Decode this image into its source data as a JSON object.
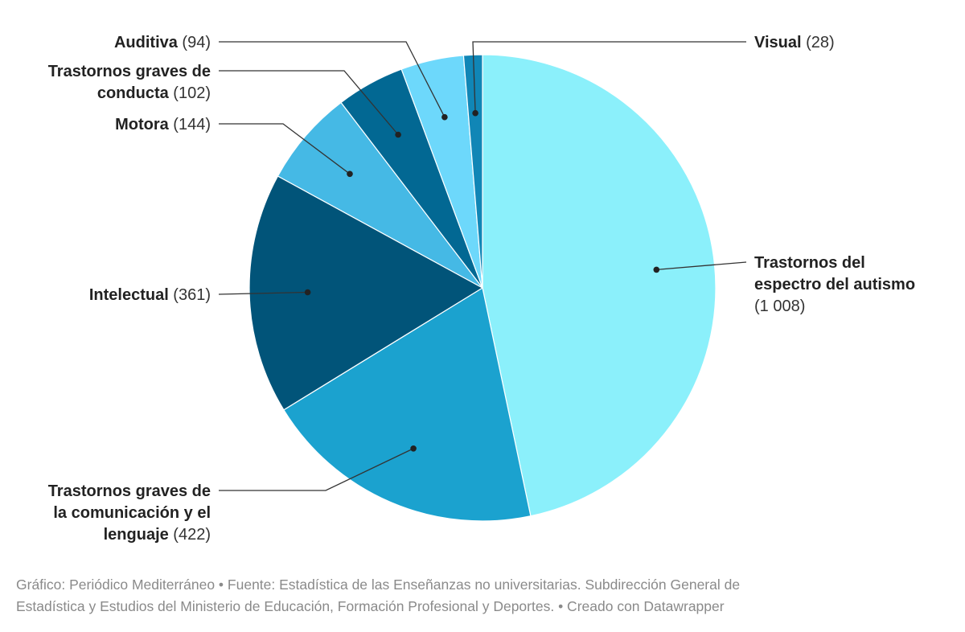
{
  "chart_data": {
    "type": "pie",
    "slices": [
      {
        "name": "Trastornos del espectro del autismo",
        "lines": [
          "Trastornos del",
          "espectro del autismo",
          ""
        ],
        "value": 1008,
        "value_text": "(1 008)",
        "color": "#8bf0fb"
      },
      {
        "name": "Trastornos graves de la comunicación y el lenguaje",
        "lines": [
          "Trastornos graves de",
          "la comunicación y el",
          "lenguaje"
        ],
        "value": 422,
        "value_text": "(422)",
        "color": "#1ba2cf"
      },
      {
        "name": "Intelectual",
        "lines": [
          "Intelectual"
        ],
        "value": 361,
        "value_text": "(361)",
        "color": "#015479"
      },
      {
        "name": "Motora",
        "lines": [
          "Motora"
        ],
        "value": 144,
        "value_text": "(144)",
        "color": "#45b9e5"
      },
      {
        "name": "Trastornos graves de conducta",
        "lines": [
          "Trastornos graves de",
          "conducta"
        ],
        "value": 102,
        "value_text": "(102)",
        "color": "#026893"
      },
      {
        "name": "Auditiva",
        "lines": [
          "Auditiva"
        ],
        "value": 94,
        "value_text": "(94)",
        "color": "#6dd8fb"
      },
      {
        "name": "Visual",
        "lines": [
          "Visual"
        ],
        "value": 28,
        "value_text": "(28)",
        "color": "#1086b6"
      }
    ]
  },
  "footer": {
    "line1": "Gráfico: Periódico Mediterráneo • Fuente: Estadística de las Enseñanzas no universitarias. Subdirección General de",
    "line2": "Estadística y Estudios del Ministerio de Educación, Formación Profesional y Deportes. • Creado con Datawrapper"
  }
}
